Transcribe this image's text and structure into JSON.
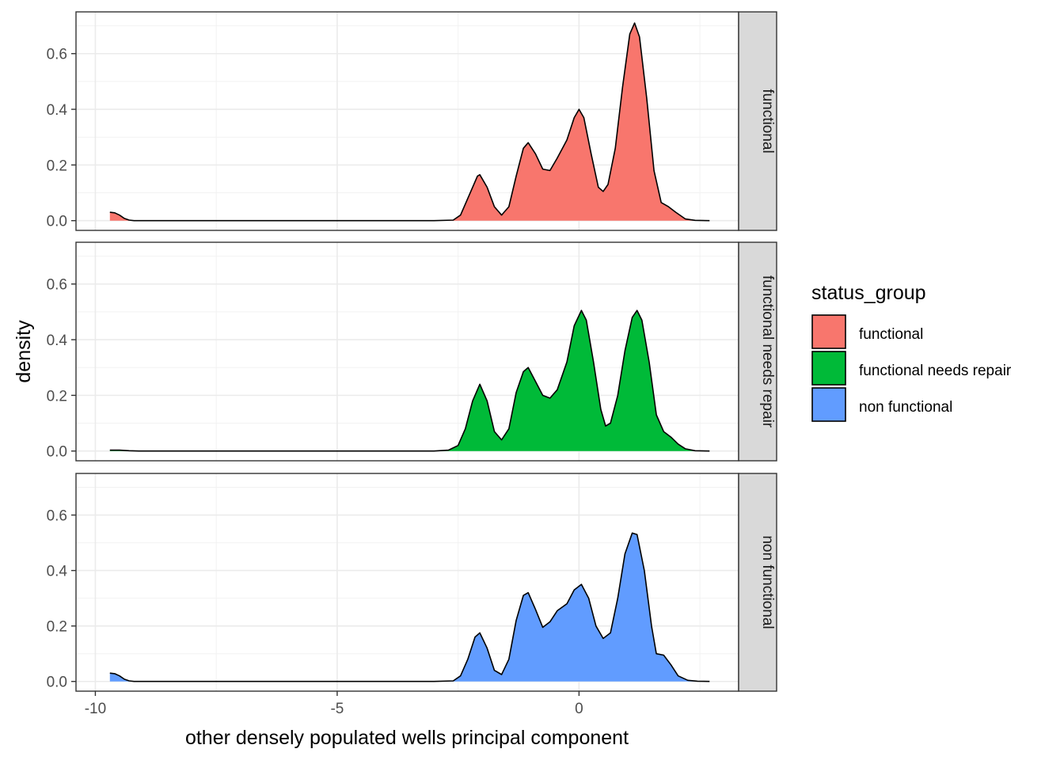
{
  "chart_data": {
    "type": "area",
    "subtype": "faceted density",
    "xlabel": "other densely populated wells principal component",
    "ylabel": "density",
    "xlim": [
      -10.4,
      3.3
    ],
    "ylim": [
      -0.035,
      0.75
    ],
    "x_ticks": [
      -10,
      -5,
      0
    ],
    "x_tick_labels": [
      "-10",
      "-5",
      "0"
    ],
    "y_ticks": [
      0.0,
      0.2,
      0.4,
      0.6
    ],
    "y_tick_labels": [
      "0.0",
      "0.2",
      "0.4",
      "0.6"
    ],
    "grid": true,
    "legend": {
      "title": "status_group",
      "position": "right",
      "entries": [
        "functional",
        "functional needs repair",
        "non functional"
      ]
    },
    "facet_labels": [
      "functional",
      "functional needs repair",
      "non functional"
    ],
    "series": [
      {
        "name": "functional",
        "color": "#F8766D",
        "points": [
          [
            -9.7,
            0.03
          ],
          [
            -9.6,
            0.028
          ],
          [
            -9.5,
            0.02
          ],
          [
            -9.4,
            0.008
          ],
          [
            -9.3,
            0.002
          ],
          [
            -9.2,
            0.0
          ],
          [
            -6,
            0.0
          ],
          [
            -3,
            0.0
          ],
          [
            -2.6,
            0.002
          ],
          [
            -2.45,
            0.02
          ],
          [
            -2.3,
            0.08
          ],
          [
            -2.1,
            0.16
          ],
          [
            -2.05,
            0.165
          ],
          [
            -1.9,
            0.12
          ],
          [
            -1.75,
            0.05
          ],
          [
            -1.6,
            0.02
          ],
          [
            -1.45,
            0.05
          ],
          [
            -1.3,
            0.16
          ],
          [
            -1.15,
            0.26
          ],
          [
            -1.05,
            0.28
          ],
          [
            -0.9,
            0.24
          ],
          [
            -0.75,
            0.185
          ],
          [
            -0.6,
            0.18
          ],
          [
            -0.45,
            0.225
          ],
          [
            -0.25,
            0.29
          ],
          [
            -0.1,
            0.37
          ],
          [
            0.0,
            0.4
          ],
          [
            0.1,
            0.37
          ],
          [
            0.25,
            0.24
          ],
          [
            0.4,
            0.12
          ],
          [
            0.5,
            0.105
          ],
          [
            0.6,
            0.13
          ],
          [
            0.75,
            0.26
          ],
          [
            0.9,
            0.48
          ],
          [
            1.05,
            0.67
          ],
          [
            1.15,
            0.71
          ],
          [
            1.25,
            0.66
          ],
          [
            1.4,
            0.44
          ],
          [
            1.55,
            0.18
          ],
          [
            1.7,
            0.065
          ],
          [
            1.85,
            0.05
          ],
          [
            2.0,
            0.03
          ],
          [
            2.2,
            0.006
          ],
          [
            2.4,
            0.001
          ],
          [
            2.7,
            0.0
          ]
        ]
      },
      {
        "name": "functional needs repair",
        "color": "#00BA38",
        "points": [
          [
            -9.7,
            0.003
          ],
          [
            -9.5,
            0.003
          ],
          [
            -9.3,
            0.001
          ],
          [
            -9.1,
            0.0
          ],
          [
            -6,
            0.0
          ],
          [
            -3,
            0.0
          ],
          [
            -2.7,
            0.003
          ],
          [
            -2.5,
            0.02
          ],
          [
            -2.35,
            0.08
          ],
          [
            -2.2,
            0.18
          ],
          [
            -2.05,
            0.24
          ],
          [
            -1.9,
            0.18
          ],
          [
            -1.75,
            0.07
          ],
          [
            -1.6,
            0.04
          ],
          [
            -1.45,
            0.08
          ],
          [
            -1.3,
            0.21
          ],
          [
            -1.15,
            0.285
          ],
          [
            -1.05,
            0.3
          ],
          [
            -0.9,
            0.25
          ],
          [
            -0.75,
            0.2
          ],
          [
            -0.6,
            0.19
          ],
          [
            -0.45,
            0.22
          ],
          [
            -0.25,
            0.32
          ],
          [
            -0.1,
            0.45
          ],
          [
            0.05,
            0.505
          ],
          [
            0.15,
            0.47
          ],
          [
            0.3,
            0.32
          ],
          [
            0.45,
            0.15
          ],
          [
            0.55,
            0.09
          ],
          [
            0.65,
            0.1
          ],
          [
            0.8,
            0.2
          ],
          [
            0.95,
            0.36
          ],
          [
            1.1,
            0.48
          ],
          [
            1.2,
            0.505
          ],
          [
            1.3,
            0.47
          ],
          [
            1.45,
            0.32
          ],
          [
            1.6,
            0.13
          ],
          [
            1.75,
            0.07
          ],
          [
            1.9,
            0.05
          ],
          [
            2.05,
            0.025
          ],
          [
            2.2,
            0.008
          ],
          [
            2.4,
            0.001
          ],
          [
            2.7,
            0.0
          ]
        ]
      },
      {
        "name": "non functional",
        "color": "#619CFF",
        "points": [
          [
            -9.7,
            0.03
          ],
          [
            -9.6,
            0.028
          ],
          [
            -9.5,
            0.02
          ],
          [
            -9.4,
            0.008
          ],
          [
            -9.3,
            0.002
          ],
          [
            -9.2,
            0.0
          ],
          [
            -6,
            0.0
          ],
          [
            -3,
            0.0
          ],
          [
            -2.6,
            0.002
          ],
          [
            -2.45,
            0.02
          ],
          [
            -2.3,
            0.08
          ],
          [
            -2.15,
            0.16
          ],
          [
            -2.05,
            0.175
          ],
          [
            -1.9,
            0.12
          ],
          [
            -1.75,
            0.04
          ],
          [
            -1.6,
            0.025
          ],
          [
            -1.45,
            0.08
          ],
          [
            -1.3,
            0.22
          ],
          [
            -1.15,
            0.31
          ],
          [
            -1.05,
            0.32
          ],
          [
            -0.9,
            0.26
          ],
          [
            -0.75,
            0.195
          ],
          [
            -0.6,
            0.215
          ],
          [
            -0.45,
            0.255
          ],
          [
            -0.25,
            0.28
          ],
          [
            -0.1,
            0.33
          ],
          [
            0.05,
            0.35
          ],
          [
            0.2,
            0.3
          ],
          [
            0.35,
            0.2
          ],
          [
            0.5,
            0.155
          ],
          [
            0.65,
            0.175
          ],
          [
            0.8,
            0.3
          ],
          [
            0.95,
            0.46
          ],
          [
            1.1,
            0.535
          ],
          [
            1.2,
            0.53
          ],
          [
            1.35,
            0.4
          ],
          [
            1.5,
            0.2
          ],
          [
            1.6,
            0.1
          ],
          [
            1.75,
            0.095
          ],
          [
            1.9,
            0.06
          ],
          [
            2.05,
            0.02
          ],
          [
            2.25,
            0.004
          ],
          [
            2.45,
            0.001
          ],
          [
            2.7,
            0.0
          ]
        ]
      }
    ]
  }
}
